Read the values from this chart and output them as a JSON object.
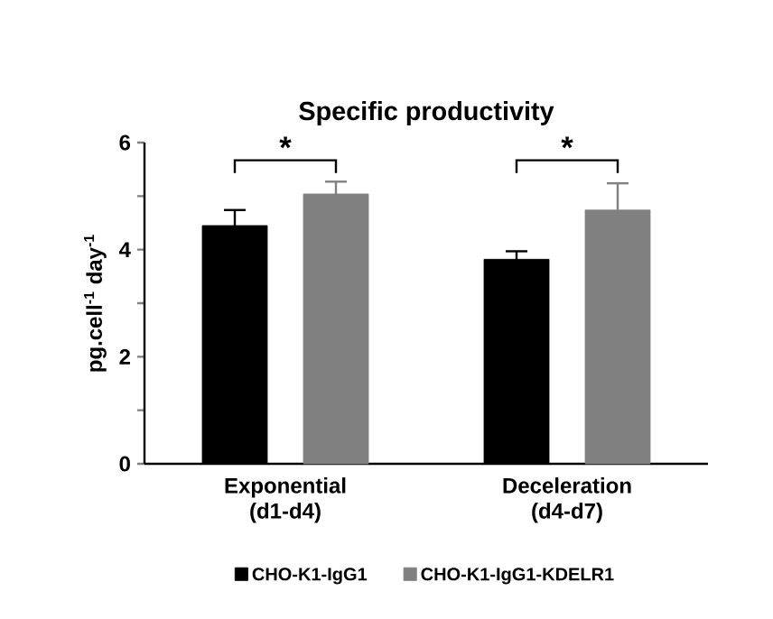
{
  "chart_data": {
    "type": "bar",
    "title": "Specific productivity",
    "ylabel": "pg.cell$^{-1}$ day$^{-1}$",
    "categories": [
      "Exponential (d1-d4)",
      "Deceleration (d4-d7)"
    ],
    "series": [
      {
        "name": "CHO-K1-IgG1",
        "color": "#000000",
        "values": [
          4.45,
          3.82
        ],
        "errors": [
          0.29,
          0.15
        ]
      },
      {
        "name": "CHO-K1-IgG1-KDELR1",
        "color": "#808080",
        "values": [
          5.04,
          4.74
        ],
        "errors": [
          0.23,
          0.5
        ]
      }
    ],
    "ylim": [
      0,
      6
    ],
    "yticks": [
      0,
      {
        "value": 1,
        "label": null
      },
      2,
      {
        "value": 3,
        "label": null
      },
      4,
      {
        "value": 5,
        "label": null
      },
      6
    ],
    "annotations": [
      "*",
      "*"
    ],
    "legend": "bottom",
    "grid": false
  }
}
